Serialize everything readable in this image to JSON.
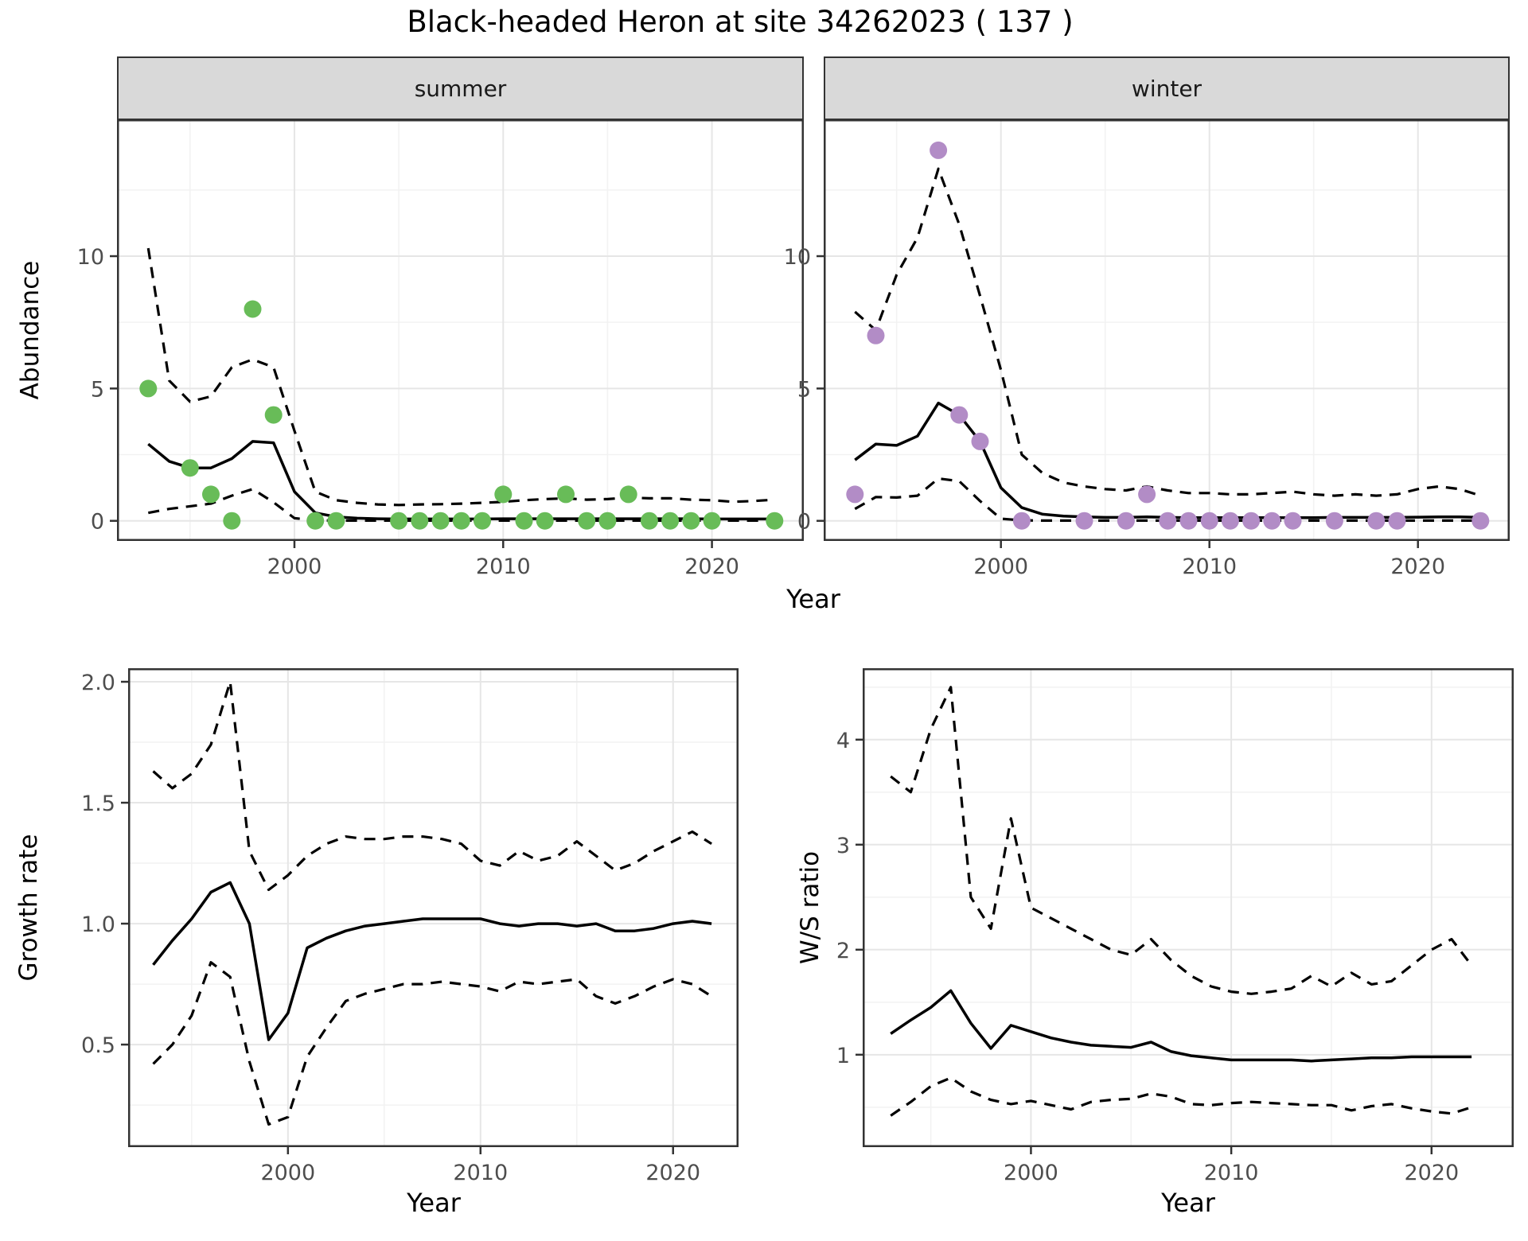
{
  "title": "Black-headed Heron at site 34262023 ( 137 )",
  "colors": {
    "summer_points": "#68bc58",
    "winter_points": "#b28cc6",
    "line": "#000000",
    "strip_bg": "#d9d9d9",
    "grid_major": "#e6e6e6",
    "grid_minor": "#f2f2f2",
    "border": "#333333",
    "tick_label": "#4d4d4d"
  },
  "axes": {
    "abundance_label": "Abundance",
    "growth_label": "Growth rate",
    "ws_label": "W/S ratio",
    "year_label": "Year"
  },
  "chart_data": [
    {
      "name": "abundance-summer",
      "type": "line",
      "strip": "summer",
      "ylabel": "Abundance",
      "xlabel": "Year",
      "xlim": [
        1991.5,
        2024.4
      ],
      "ylim": [
        -0.76,
        15.17
      ],
      "xticks": {
        "values": [
          2000,
          2010,
          2020
        ],
        "labels": [
          "2000",
          "2010",
          "2020"
        ],
        "minor": [
          1995,
          2005,
          2015
        ]
      },
      "yticks": {
        "values": [
          0,
          5,
          10
        ],
        "labels": [
          "0",
          "5",
          "10"
        ],
        "minor": [
          2.5,
          7.5,
          12.5
        ]
      },
      "points": {
        "color": "#68bc58",
        "x": [
          1993,
          1995,
          1996,
          1997,
          1998,
          1999,
          2001,
          2002,
          2005,
          2006,
          2007,
          2008,
          2009,
          2010,
          2011,
          2012,
          2013,
          2014,
          2015,
          2016,
          2017,
          2018,
          2019,
          2020,
          2023
        ],
        "y": [
          5,
          2,
          1,
          0,
          8,
          4,
          0,
          0,
          0,
          0,
          0,
          0,
          0,
          1,
          0,
          0,
          1,
          0,
          0,
          1,
          0,
          0,
          0,
          0,
          0
        ]
      },
      "series": [
        {
          "name": "fit",
          "style": "solid",
          "x": [
            1993,
            1994,
            1995,
            1996,
            1997,
            1998,
            1999,
            2000,
            2001,
            2002,
            2003,
            2004,
            2005,
            2006,
            2007,
            2008,
            2009,
            2010,
            2011,
            2012,
            2013,
            2014,
            2015,
            2016,
            2017,
            2018,
            2019,
            2020,
            2021,
            2022,
            2023
          ],
          "y": [
            2.9,
            2.25,
            2.0,
            2.0,
            2.35,
            3.0,
            2.95,
            1.1,
            0.3,
            0.15,
            0.1,
            0.08,
            0.07,
            0.07,
            0.07,
            0.07,
            0.07,
            0.08,
            0.08,
            0.08,
            0.08,
            0.08,
            0.08,
            0.08,
            0.08,
            0.08,
            0.08,
            0.07,
            0.07,
            0.07,
            0.07
          ]
        },
        {
          "name": "upper-ci",
          "style": "dashed",
          "x": [
            1993,
            1994,
            1995,
            1996,
            1997,
            1998,
            1999,
            2000,
            2001,
            2002,
            2003,
            2004,
            2005,
            2006,
            2007,
            2008,
            2009,
            2010,
            2011,
            2012,
            2013,
            2014,
            2015,
            2016,
            2017,
            2018,
            2019,
            2020,
            2021,
            2022,
            2023
          ],
          "y": [
            10.3,
            5.3,
            4.5,
            4.7,
            5.8,
            6.1,
            5.8,
            3.4,
            1.1,
            0.78,
            0.68,
            0.62,
            0.6,
            0.62,
            0.63,
            0.65,
            0.68,
            0.72,
            0.78,
            0.82,
            0.85,
            0.8,
            0.82,
            0.88,
            0.85,
            0.85,
            0.8,
            0.78,
            0.72,
            0.75,
            0.8
          ]
        },
        {
          "name": "lower-ci",
          "style": "dashed",
          "x": [
            1993,
            1994,
            1995,
            1996,
            1997,
            1998,
            1999,
            2000,
            2001,
            2002,
            2003,
            2004,
            2005,
            2006,
            2007,
            2008,
            2009,
            2010,
            2011,
            2012,
            2013,
            2014,
            2015,
            2016,
            2017,
            2018,
            2019,
            2020,
            2021,
            2022,
            2023
          ],
          "y": [
            0.3,
            0.45,
            0.55,
            0.65,
            0.95,
            1.2,
            0.7,
            0.1,
            0.02,
            0.01,
            0.01,
            0.01,
            0.01,
            0.01,
            0.01,
            0.01,
            0.01,
            0.01,
            0.01,
            0.01,
            0.01,
            0.01,
            0.01,
            0.01,
            0.01,
            0.01,
            0.01,
            0.01,
            0.01,
            0.01,
            0.01
          ]
        }
      ]
    },
    {
      "name": "abundance-winter",
      "type": "line",
      "strip": "winter",
      "ylabel": "Abundance",
      "xlabel": "Year",
      "xlim": [
        1991.5,
        2024.4
      ],
      "ylim": [
        -0.76,
        15.17
      ],
      "xticks": {
        "values": [
          2000,
          2010,
          2020
        ],
        "labels": [
          "2000",
          "2010",
          "2020"
        ],
        "minor": [
          1995,
          2005,
          2015
        ]
      },
      "yticks": {
        "values": [
          0,
          5,
          10
        ],
        "labels": [
          "0",
          "5",
          "10"
        ],
        "minor": [
          2.5,
          7.5,
          12.5
        ]
      },
      "points": {
        "color": "#b28cc6",
        "x": [
          1993,
          1994,
          1997,
          1998,
          1999,
          2001,
          2004,
          2006,
          2007,
          2008,
          2009,
          2010,
          2011,
          2012,
          2013,
          2014,
          2016,
          2018,
          2019,
          2023
        ],
        "y": [
          1,
          7,
          14,
          4,
          3,
          0,
          0,
          0,
          1,
          0,
          0,
          0,
          0,
          0,
          0,
          0,
          0,
          0,
          0,
          0
        ]
      },
      "series": [
        {
          "name": "fit",
          "style": "solid",
          "x": [
            1993,
            1994,
            1995,
            1996,
            1997,
            1998,
            1999,
            2000,
            2001,
            2002,
            2003,
            2004,
            2005,
            2006,
            2007,
            2008,
            2009,
            2010,
            2011,
            2012,
            2013,
            2014,
            2015,
            2016,
            2017,
            2018,
            2019,
            2020,
            2021,
            2022,
            2023
          ],
          "y": [
            2.3,
            2.9,
            2.85,
            3.2,
            4.45,
            4.0,
            3.0,
            1.25,
            0.5,
            0.25,
            0.18,
            0.15,
            0.13,
            0.13,
            0.15,
            0.13,
            0.12,
            0.12,
            0.12,
            0.12,
            0.12,
            0.12,
            0.12,
            0.13,
            0.13,
            0.13,
            0.13,
            0.14,
            0.15,
            0.15,
            0.13
          ]
        },
        {
          "name": "upper-ci",
          "style": "dashed",
          "x": [
            1993,
            1994,
            1995,
            1996,
            1997,
            1998,
            1999,
            2000,
            2001,
            2002,
            2003,
            2004,
            2005,
            2006,
            2007,
            2008,
            2009,
            2010,
            2011,
            2012,
            2013,
            2014,
            2015,
            2016,
            2017,
            2018,
            2019,
            2020,
            2021,
            2022,
            2023
          ],
          "y": [
            7.9,
            7.2,
            9.3,
            10.7,
            13.3,
            11.2,
            8.5,
            5.7,
            2.5,
            1.8,
            1.45,
            1.3,
            1.2,
            1.15,
            1.3,
            1.15,
            1.05,
            1.05,
            1.0,
            1.0,
            1.05,
            1.1,
            1.0,
            0.95,
            1.0,
            0.95,
            1.0,
            1.2,
            1.3,
            1.2,
            0.95
          ]
        },
        {
          "name": "lower-ci",
          "style": "dashed",
          "x": [
            1993,
            1994,
            1995,
            1996,
            1997,
            1998,
            1999,
            2000,
            2001,
            2002,
            2003,
            2004,
            2005,
            2006,
            2007,
            2008,
            2009,
            2010,
            2011,
            2012,
            2013,
            2014,
            2015,
            2016,
            2017,
            2018,
            2019,
            2020,
            2021,
            2022,
            2023
          ],
          "y": [
            0.45,
            0.9,
            0.88,
            0.95,
            1.6,
            1.5,
            0.75,
            0.08,
            0.02,
            0.01,
            0.01,
            0.01,
            0.01,
            0.01,
            0.01,
            0.01,
            0.01,
            0.01,
            0.01,
            0.01,
            0.01,
            0.01,
            0.01,
            0.01,
            0.01,
            0.01,
            0.01,
            0.01,
            0.01,
            0.01,
            0.01
          ]
        }
      ]
    },
    {
      "name": "growth-rate",
      "type": "line",
      "strip": "",
      "ylabel": "Growth rate",
      "xlabel": "Year",
      "xlim": [
        1991.7,
        2023.4
      ],
      "ylim": [
        0.076,
        2.056
      ],
      "xticks": {
        "values": [
          2000,
          2010,
          2020
        ],
        "labels": [
          "2000",
          "2010",
          "2020"
        ],
        "minor": [
          1995,
          2005,
          2015
        ]
      },
      "yticks": {
        "values": [
          0.5,
          1.0,
          1.5,
          2.0
        ],
        "labels": [
          "0.5",
          "1.0",
          "1.5",
          "2.0"
        ],
        "minor": [
          0.25,
          0.75,
          1.25,
          1.75
        ]
      },
      "points": null,
      "series": [
        {
          "name": "fit",
          "style": "solid",
          "x": [
            1993,
            1994,
            1995,
            1996,
            1997,
            1998,
            1999,
            2000,
            2001,
            2002,
            2003,
            2004,
            2005,
            2006,
            2007,
            2008,
            2009,
            2010,
            2011,
            2012,
            2013,
            2014,
            2015,
            2016,
            2017,
            2018,
            2019,
            2020,
            2021,
            2022
          ],
          "y": [
            0.83,
            0.93,
            1.02,
            1.13,
            1.17,
            1.0,
            0.52,
            0.63,
            0.9,
            0.94,
            0.97,
            0.99,
            1.0,
            1.01,
            1.02,
            1.02,
            1.02,
            1.02,
            1.0,
            0.99,
            1.0,
            1.0,
            0.99,
            1.0,
            0.97,
            0.97,
            0.98,
            1.0,
            1.01,
            1.0
          ]
        },
        {
          "name": "upper-ci",
          "style": "dashed",
          "x": [
            1993,
            1994,
            1995,
            1996,
            1997,
            1998,
            1999,
            2000,
            2001,
            2002,
            2003,
            2004,
            2005,
            2006,
            2007,
            2008,
            2009,
            2010,
            2011,
            2012,
            2013,
            2014,
            2015,
            2016,
            2017,
            2018,
            2019,
            2020,
            2021,
            2022
          ],
          "y": [
            1.63,
            1.56,
            1.62,
            1.74,
            2.0,
            1.3,
            1.14,
            1.2,
            1.28,
            1.33,
            1.36,
            1.35,
            1.35,
            1.36,
            1.36,
            1.35,
            1.33,
            1.26,
            1.24,
            1.3,
            1.26,
            1.28,
            1.34,
            1.28,
            1.22,
            1.25,
            1.3,
            1.34,
            1.38,
            1.33
          ]
        },
        {
          "name": "lower-ci",
          "style": "dashed",
          "x": [
            1993,
            1994,
            1995,
            1996,
            1997,
            1998,
            1999,
            2000,
            2001,
            2002,
            2003,
            2004,
            2005,
            2006,
            2007,
            2008,
            2009,
            2010,
            2011,
            2012,
            2013,
            2014,
            2015,
            2016,
            2017,
            2018,
            2019,
            2020,
            2021,
            2022
          ],
          "y": [
            0.42,
            0.5,
            0.62,
            0.84,
            0.78,
            0.43,
            0.17,
            0.2,
            0.45,
            0.57,
            0.68,
            0.71,
            0.73,
            0.75,
            0.75,
            0.76,
            0.75,
            0.74,
            0.72,
            0.76,
            0.75,
            0.76,
            0.77,
            0.7,
            0.67,
            0.7,
            0.74,
            0.77,
            0.75,
            0.7
          ]
        }
      ]
    },
    {
      "name": "ws-ratio",
      "type": "line",
      "strip": "",
      "ylabel": "W/S ratio",
      "xlabel": "Year",
      "xlim": [
        1991.6,
        2024.1
      ],
      "ylim": [
        0.12,
        4.68
      ],
      "xticks": {
        "values": [
          2000,
          2010,
          2020
        ],
        "labels": [
          "2000",
          "2010",
          "2020"
        ],
        "minor": [
          1995,
          2005,
          2015
        ]
      },
      "yticks": {
        "values": [
          1,
          2,
          3,
          4
        ],
        "labels": [
          "1",
          "2",
          "3",
          "4"
        ],
        "minor": [
          0.5,
          1.5,
          2.5,
          3.5,
          4.5
        ]
      },
      "points": null,
      "series": [
        {
          "name": "fit",
          "style": "solid",
          "x": [
            1993,
            1994,
            1995,
            1996,
            1997,
            1998,
            1999,
            2000,
            2001,
            2002,
            2003,
            2004,
            2005,
            2006,
            2007,
            2008,
            2009,
            2010,
            2011,
            2012,
            2013,
            2014,
            2015,
            2016,
            2017,
            2018,
            2019,
            2020,
            2021,
            2022
          ],
          "y": [
            1.2,
            1.33,
            1.45,
            1.61,
            1.3,
            1.06,
            1.28,
            1.22,
            1.16,
            1.12,
            1.09,
            1.08,
            1.07,
            1.12,
            1.03,
            0.99,
            0.97,
            0.95,
            0.95,
            0.95,
            0.95,
            0.94,
            0.95,
            0.96,
            0.97,
            0.97,
            0.98,
            0.98,
            0.98,
            0.98
          ]
        },
        {
          "name": "upper-ci",
          "style": "dashed",
          "x": [
            1993,
            1994,
            1995,
            1996,
            1997,
            1998,
            1999,
            2000,
            2001,
            2002,
            2003,
            2004,
            2005,
            2006,
            2007,
            2008,
            2009,
            2010,
            2011,
            2012,
            2013,
            2014,
            2015,
            2016,
            2017,
            2018,
            2019,
            2020,
            2021,
            2022
          ],
          "y": [
            3.65,
            3.5,
            4.1,
            4.5,
            2.5,
            2.2,
            3.25,
            2.4,
            2.3,
            2.2,
            2.1,
            2.0,
            1.95,
            2.1,
            1.9,
            1.75,
            1.65,
            1.6,
            1.58,
            1.6,
            1.63,
            1.75,
            1.65,
            1.78,
            1.67,
            1.7,
            1.85,
            2.0,
            2.1,
            1.85
          ]
        },
        {
          "name": "lower-ci",
          "style": "dashed",
          "x": [
            1993,
            1994,
            1995,
            1996,
            1997,
            1998,
            1999,
            2000,
            2001,
            2002,
            2003,
            2004,
            2005,
            2006,
            2007,
            2008,
            2009,
            2010,
            2011,
            2012,
            2013,
            2014,
            2015,
            2016,
            2017,
            2018,
            2019,
            2020,
            2021,
            2022
          ],
          "y": [
            0.42,
            0.55,
            0.7,
            0.78,
            0.65,
            0.57,
            0.53,
            0.56,
            0.52,
            0.48,
            0.55,
            0.57,
            0.58,
            0.63,
            0.6,
            0.53,
            0.52,
            0.54,
            0.55,
            0.54,
            0.53,
            0.52,
            0.52,
            0.47,
            0.51,
            0.53,
            0.49,
            0.46,
            0.44,
            0.5
          ]
        }
      ]
    }
  ]
}
